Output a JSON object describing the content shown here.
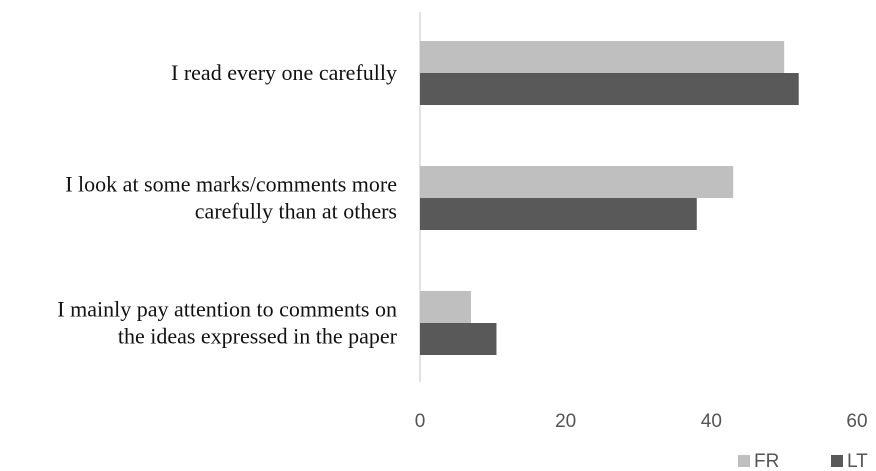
{
  "chart_data": {
    "type": "bar",
    "orientation": "horizontal",
    "categories": [
      [
        "I read every one carefully"
      ],
      [
        "I look at some marks/comments more",
        "carefully than at others"
      ],
      [
        "I mainly pay attention to comments on",
        "the ideas expressed in the paper"
      ]
    ],
    "series": [
      {
        "name": "FR",
        "color": "#bfbfbf",
        "values": [
          50,
          43,
          7
        ]
      },
      {
        "name": "LT",
        "color": "#595959",
        "values": [
          52,
          38,
          10.5
        ]
      }
    ],
    "x_ticks": [
      0,
      20,
      40,
      60
    ],
    "xlim": [
      0,
      60
    ],
    "grid": false,
    "legend_position": "bottom-right"
  }
}
